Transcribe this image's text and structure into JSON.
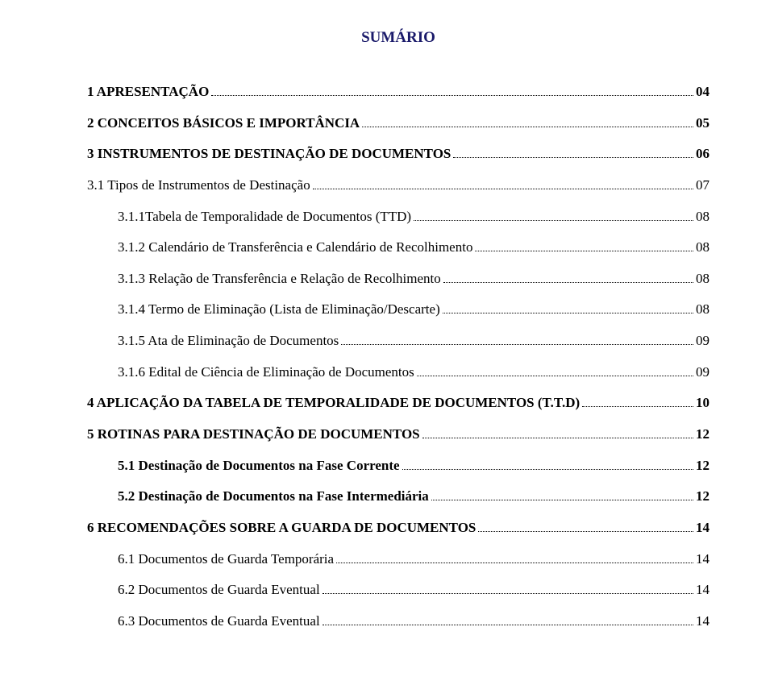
{
  "title": "SUMÁRIO",
  "text_color": "#000000",
  "title_color": "#1a1a6a",
  "background_color": "#ffffff",
  "entries": [
    {
      "label": "1 APRESENTAÇÃO",
      "page": "04",
      "bold": true,
      "indent": 0,
      "gap_after": true
    },
    {
      "label": "2 CONCEITOS BÁSICOS E IMPORTÂNCIA",
      "page": "05",
      "bold": true,
      "indent": 0,
      "gap_after": true
    },
    {
      "label": "3 INSTRUMENTOS DE DESTINAÇÃO DE DOCUMENTOS",
      "page": "06",
      "bold": true,
      "indent": 0,
      "gap_after": true
    },
    {
      "label": "3.1 Tipos de Instrumentos de Destinação",
      "page": "07",
      "bold": false,
      "indent": 0,
      "gap_after": true
    },
    {
      "label": "3.1.1Tabela de Temporalidade de Documentos (TTD)",
      "page": "08",
      "bold": false,
      "indent": 1,
      "gap_after": true
    },
    {
      "label": "3.1.2 Calendário de Transferência e Calendário de Recolhimento",
      "page": "08",
      "bold": false,
      "indent": 1,
      "gap_after": true
    },
    {
      "label": "3.1.3 Relação de Transferência e Relação de Recolhimento",
      "page": "08",
      "bold": false,
      "indent": 1,
      "gap_after": true
    },
    {
      "label": "3.1.4 Termo de Eliminação (Lista de Eliminação/Descarte)",
      "page": "08",
      "bold": false,
      "indent": 1,
      "gap_after": true
    },
    {
      "label": "3.1.5 Ata de Eliminação de Documentos",
      "page": "09",
      "bold": false,
      "indent": 1,
      "gap_after": true
    },
    {
      "label": "3.1.6 Edital de Ciência de Eliminação de Documentos",
      "page": "09",
      "bold": false,
      "indent": 1,
      "gap_after": true
    },
    {
      "label": "4 APLICAÇÃO DA TABELA DE TEMPORALIDADE DE DOCUMENTOS (T.T.D)",
      "page": "10",
      "bold": true,
      "indent": 0,
      "gap_after": true
    },
    {
      "label": "5 ROTINAS PARA DESTINAÇÃO DE DOCUMENTOS",
      "page": "12",
      "bold": true,
      "indent": 0,
      "gap_after": true
    },
    {
      "label": "5.1 Destinação de Documentos na Fase Corrente",
      "page": "12",
      "bold": true,
      "indent": 1,
      "gap_after": true
    },
    {
      "label": "5.2 Destinação de Documentos na Fase Intermediária",
      "page": "12",
      "bold": true,
      "indent": 1,
      "gap_after": true
    },
    {
      "label": "6 RECOMENDAÇÕES SOBRE A GUARDA DE DOCUMENTOS",
      "page": "14",
      "bold": true,
      "indent": 0,
      "gap_after": true
    },
    {
      "label": "6.1 Documentos de Guarda Temporária",
      "page": "14",
      "bold": false,
      "indent": 1,
      "gap_after": true
    },
    {
      "label": "6.2 Documentos de Guarda Eventual",
      "page": "14",
      "bold": false,
      "indent": 1,
      "gap_after": true
    },
    {
      "label": "6.3 Documentos de Guarda Eventual",
      "page": "14",
      "bold": false,
      "indent": 1,
      "gap_after": false
    }
  ]
}
